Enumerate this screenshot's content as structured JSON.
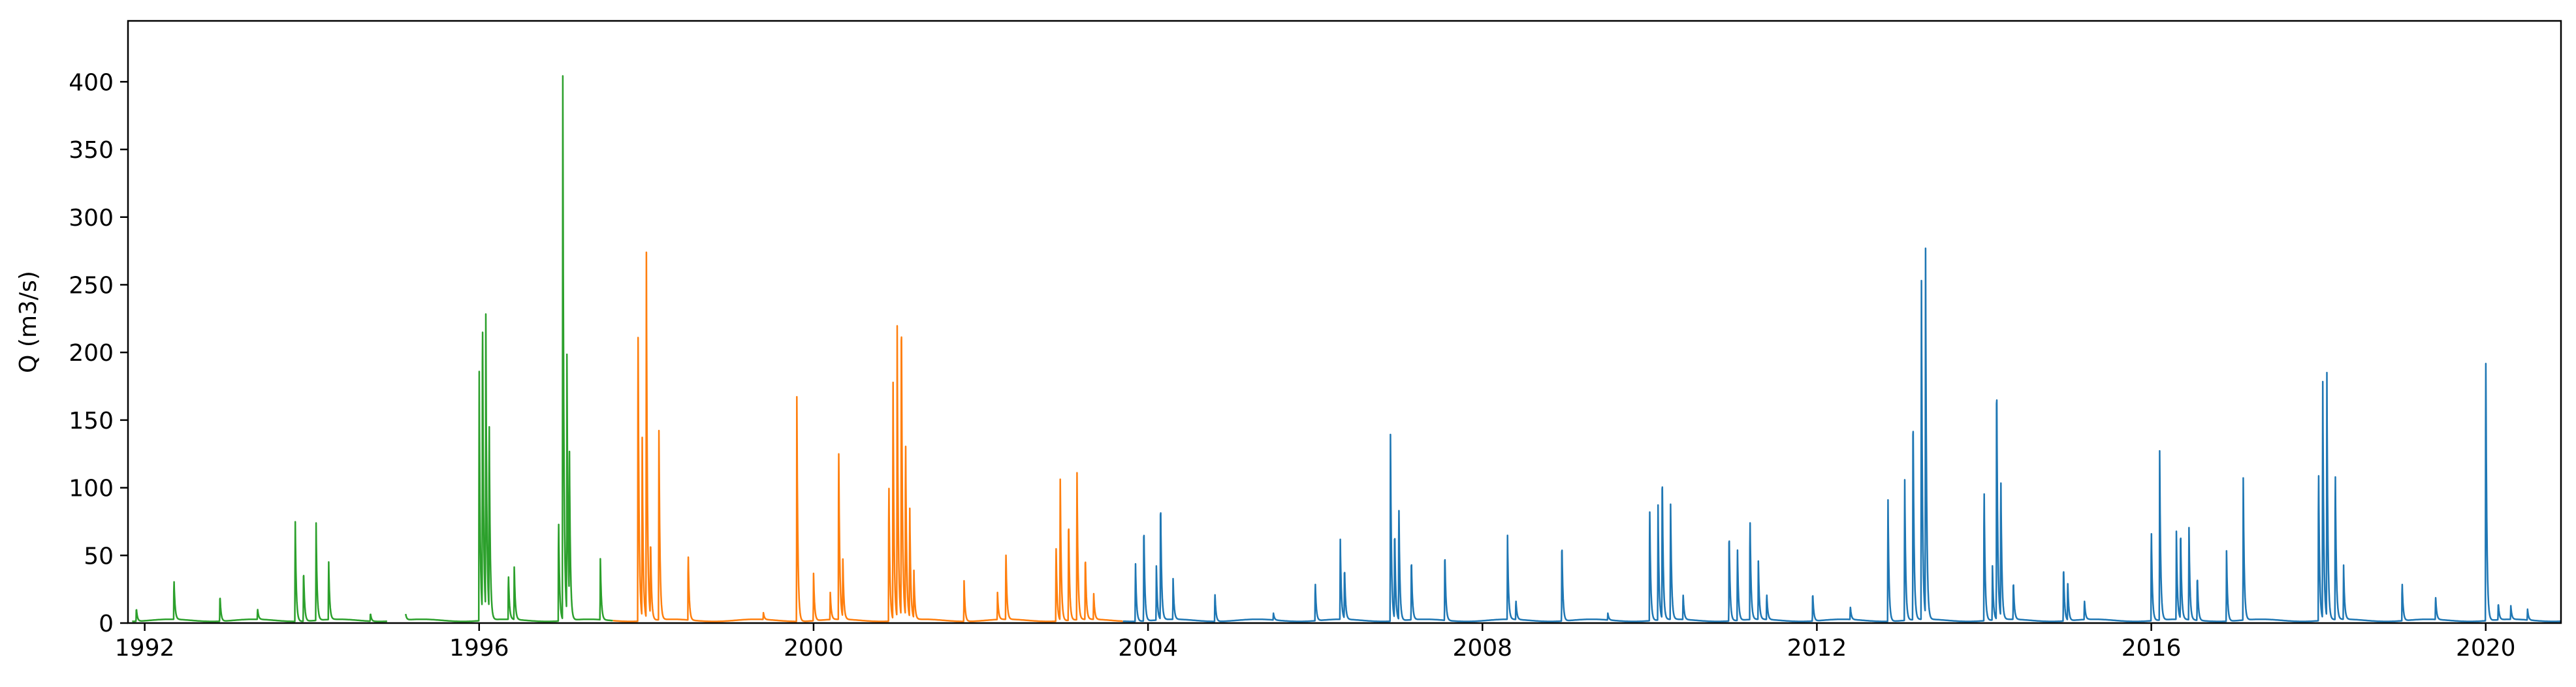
{
  "chart_data": {
    "type": "line",
    "title": "",
    "xlabel": "",
    "ylabel": "Q (m3/s)",
    "xlim": [
      1991.8,
      2020.9
    ],
    "ylim": [
      0,
      445
    ],
    "grid": false,
    "legend": "none",
    "x_ticks": [
      1992,
      1996,
      2000,
      2004,
      2008,
      2012,
      2016,
      2020
    ],
    "y_ticks": [
      0,
      50,
      100,
      150,
      200,
      250,
      300,
      350,
      400
    ],
    "baseflow": 2,
    "series": [
      {
        "color": "#2ca02c",
        "x_range": [
          1991.85,
          1997.6
        ],
        "gaps": [
          [
            1994.9,
            1995.12
          ]
        ],
        "peaks": [
          [
            1991.9,
            10
          ],
          [
            1992.35,
            31
          ],
          [
            1992.9,
            20
          ],
          [
            1993.35,
            8
          ],
          [
            1993.8,
            78
          ],
          [
            1993.9,
            40
          ],
          [
            1994.05,
            72
          ],
          [
            1994.2,
            45
          ],
          [
            1994.7,
            6
          ],
          [
            1995.05,
            45
          ],
          [
            1995.1,
            25
          ],
          [
            1996.0,
            195
          ],
          [
            1996.04,
            240
          ],
          [
            1996.08,
            220
          ],
          [
            1996.12,
            150
          ],
          [
            1996.35,
            35
          ],
          [
            1996.42,
            40
          ],
          [
            1996.95,
            80
          ],
          [
            1997.0,
            425
          ],
          [
            1997.05,
            190
          ],
          [
            1997.08,
            110
          ],
          [
            1997.45,
            45
          ]
        ]
      },
      {
        "color": "#ff7f0e",
        "x_range": [
          1997.6,
          2003.7
        ],
        "gaps": [],
        "peaks": [
          [
            1997.9,
            235
          ],
          [
            1997.95,
            140
          ],
          [
            1998.0,
            270
          ],
          [
            1998.05,
            60
          ],
          [
            1998.15,
            148
          ],
          [
            1998.5,
            52
          ],
          [
            1999.4,
            5
          ],
          [
            1999.8,
            166
          ],
          [
            2000.0,
            35
          ],
          [
            2000.2,
            20
          ],
          [
            2000.3,
            137
          ],
          [
            2000.35,
            45
          ],
          [
            2000.9,
            110
          ],
          [
            2000.95,
            185
          ],
          [
            2001.0,
            215
          ],
          [
            2001.05,
            245
          ],
          [
            2001.1,
            140
          ],
          [
            2001.15,
            85
          ],
          [
            2001.2,
            35
          ],
          [
            2001.8,
            30
          ],
          [
            2002.2,
            20
          ],
          [
            2002.3,
            53
          ],
          [
            2002.9,
            60
          ],
          [
            2002.95,
            110
          ],
          [
            2003.05,
            80
          ],
          [
            2003.15,
            115
          ],
          [
            2003.25,
            50
          ],
          [
            2003.35,
            20
          ]
        ]
      },
      {
        "color": "#1f77b4",
        "x_range": [
          2003.7,
          2020.9
        ],
        "gaps": [],
        "peaks": [
          [
            2003.85,
            45
          ],
          [
            2003.95,
            75
          ],
          [
            2004.1,
            40
          ],
          [
            2004.15,
            93
          ],
          [
            2004.3,
            30
          ],
          [
            2004.8,
            22
          ],
          [
            2005.5,
            5
          ],
          [
            2006.0,
            30
          ],
          [
            2006.3,
            59
          ],
          [
            2006.35,
            40
          ],
          [
            2006.9,
            138
          ],
          [
            2006.95,
            70
          ],
          [
            2007.0,
            90
          ],
          [
            2007.15,
            48
          ],
          [
            2007.55,
            53
          ],
          [
            2008.3,
            62
          ],
          [
            2008.4,
            15
          ],
          [
            2008.95,
            62
          ],
          [
            2009.5,
            5
          ],
          [
            2010.0,
            90
          ],
          [
            2010.1,
            85
          ],
          [
            2010.15,
            115
          ],
          [
            2010.25,
            90
          ],
          [
            2010.4,
            20
          ],
          [
            2010.95,
            70
          ],
          [
            2011.05,
            55
          ],
          [
            2011.2,
            80
          ],
          [
            2011.3,
            43
          ],
          [
            2011.4,
            20
          ],
          [
            2011.95,
            22
          ],
          [
            2012.4,
            10
          ],
          [
            2012.85,
            95
          ],
          [
            2013.05,
            110
          ],
          [
            2013.15,
            165
          ],
          [
            2013.25,
            265
          ],
          [
            2013.3,
            270
          ],
          [
            2014.0,
            105
          ],
          [
            2014.1,
            40
          ],
          [
            2014.15,
            192
          ],
          [
            2014.2,
            110
          ],
          [
            2014.35,
            30
          ],
          [
            2014.95,
            43
          ],
          [
            2015.0,
            30
          ],
          [
            2015.2,
            15
          ],
          [
            2016.0,
            72
          ],
          [
            2016.1,
            125
          ],
          [
            2016.3,
            65
          ],
          [
            2016.35,
            70
          ],
          [
            2016.45,
            72
          ],
          [
            2016.55,
            35
          ],
          [
            2016.9,
            52
          ],
          [
            2017.1,
            105
          ],
          [
            2018.0,
            120
          ],
          [
            2018.05,
            185
          ],
          [
            2018.1,
            180
          ],
          [
            2018.2,
            118
          ],
          [
            2018.3,
            40
          ],
          [
            2019.0,
            30
          ],
          [
            2019.4,
            18
          ],
          [
            2020.0,
            213
          ],
          [
            2020.15,
            13
          ],
          [
            2020.3,
            10
          ],
          [
            2020.5,
            8
          ]
        ]
      }
    ]
  }
}
